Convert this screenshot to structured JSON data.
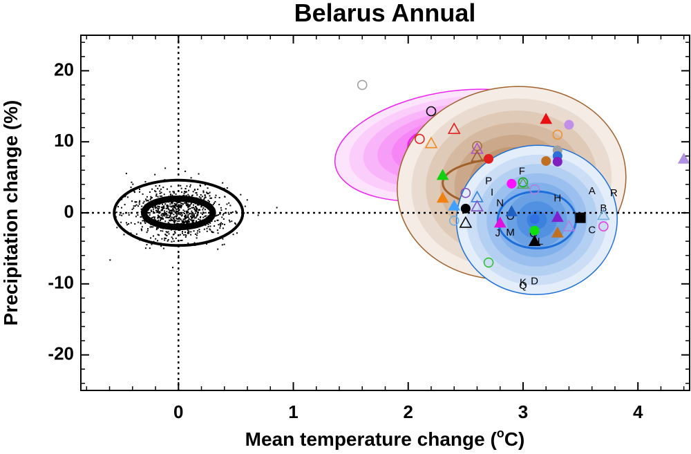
{
  "chart_data": {
    "type": "scatter",
    "title": "Belarus Annual",
    "xlabel": "Mean temperature change (",
    "xlabel_sup": "o",
    "xlabel_end": "C)",
    "ylabel": "Precipitation change (%)",
    "xlim": [
      -0.85,
      4.45
    ],
    "ylim": [
      -25,
      25
    ],
    "xticks": [
      0,
      1,
      2,
      3,
      4
    ],
    "yticks": [
      20,
      10,
      0,
      -10,
      -20
    ],
    "ytick_labels": [
      "20",
      "10",
      "0",
      "-10",
      "-20"
    ],
    "reference_lines": {
      "x": 0,
      "y": 0,
      "style": "dotted"
    },
    "natural_variability": {
      "center": [
        0,
        0
      ],
      "inner_ellipse": {
        "rx": 0.3,
        "ry": 2.0
      },
      "outer_ellipse": {
        "rx": 0.56,
        "ry": 4.6
      },
      "cloud_color": "#000000"
    },
    "model_distributions": [
      {
        "color": "#ee22ee",
        "center": [
          2.35,
          9.5
        ],
        "outer": {
          "rx": 1.0,
          "ry": 7.5,
          "rot": -10
        },
        "inner": {
          "rx": 0.35,
          "ry": 2.6
        }
      },
      {
        "color": "#a0602a",
        "center": [
          2.9,
          4.2
        ],
        "outer": {
          "rx": 1.0,
          "ry": 13.5,
          "rot": -10
        },
        "inner": {
          "rx": 0.6,
          "ry": 3.5
        }
      },
      {
        "color": "#1c6fd8",
        "center": [
          3.12,
          -1.0
        ],
        "outer": {
          "rx": 0.7,
          "ry": 10.5,
          "rot": -5
        },
        "inner": {
          "rx": 0.34,
          "ry": 4.0
        }
      }
    ],
    "letters": [
      {
        "text": "F",
        "x": 2.99,
        "y": 5.8
      },
      {
        "text": "P",
        "x": 2.7,
        "y": 4.4
      },
      {
        "text": "I",
        "x": 2.73,
        "y": 2.8
      },
      {
        "text": "N",
        "x": 2.8,
        "y": 1.3
      },
      {
        "text": "H",
        "x": 3.3,
        "y": 2.0
      },
      {
        "text": "A",
        "x": 3.6,
        "y": 3.0
      },
      {
        "text": "R",
        "x": 3.79,
        "y": 2.7
      },
      {
        "text": "B",
        "x": 3.7,
        "y": 0.6
      },
      {
        "text": "O",
        "x": 2.89,
        "y": -0.6
      },
      {
        "text": "J",
        "x": 2.78,
        "y": -2.9
      },
      {
        "text": "M",
        "x": 2.89,
        "y": -2.8
      },
      {
        "text": "C",
        "x": 3.6,
        "y": -2.5
      },
      {
        "text": "D",
        "x": 3.1,
        "y": -9.7
      },
      {
        "text": "Q",
        "x": 3.0,
        "y": -10.3
      },
      {
        "text": "K",
        "x": 3.0,
        "y": -9.9
      },
      {
        "text": "L",
        "x": 3.15,
        "y": -4.1
      },
      {
        "text": "G",
        "x": 3.09,
        "y": -3.0
      },
      {
        "text": "E",
        "x": 3.3,
        "y": 7.8
      }
    ],
    "points": [
      {
        "x": 1.6,
        "y": 18.0,
        "shape": "circle",
        "fill": false,
        "color": "#a0a0a0"
      },
      {
        "x": 2.2,
        "y": 14.3,
        "shape": "circle",
        "fill": false,
        "color": "#000000"
      },
      {
        "x": 2.1,
        "y": 10.4,
        "shape": "circle",
        "fill": false,
        "color": "#e02020"
      },
      {
        "x": 2.2,
        "y": 9.8,
        "shape": "triangle",
        "fill": false,
        "color": "#f08a20"
      },
      {
        "x": 2.4,
        "y": 11.8,
        "shape": "triangle",
        "fill": false,
        "color": "#e02020"
      },
      {
        "x": 2.6,
        "y": 9.4,
        "shape": "circle",
        "fill": false,
        "color": "#a07040"
      },
      {
        "x": 2.6,
        "y": 9.0,
        "shape": "triangle",
        "fill": false,
        "color": "#b050d0"
      },
      {
        "x": 2.6,
        "y": 7.9,
        "shape": "triangle",
        "fill": false,
        "color": "#a0602a"
      },
      {
        "x": 2.7,
        "y": 7.6,
        "shape": "circle",
        "fill": true,
        "color": "#e02020"
      },
      {
        "x": 3.2,
        "y": 13.2,
        "shape": "triangle",
        "fill": true,
        "color": "#e81010"
      },
      {
        "x": 3.4,
        "y": 12.4,
        "shape": "circle",
        "fill": true,
        "color": "#c090e8"
      },
      {
        "x": 3.3,
        "y": 11.0,
        "shape": "circle",
        "fill": false,
        "color": "#f09030"
      },
      {
        "x": 3.3,
        "y": 8.8,
        "shape": "circle",
        "fill": true,
        "color": "#a0a0a0"
      },
      {
        "x": 3.3,
        "y": 8.0,
        "shape": "circle",
        "fill": true,
        "color": "#2a70d8"
      },
      {
        "x": 3.2,
        "y": 7.3,
        "shape": "circle",
        "fill": true,
        "color": "#c07020"
      },
      {
        "x": 3.3,
        "y": 7.2,
        "shape": "circle",
        "fill": true,
        "color": "#8020c0"
      },
      {
        "x": 4.4,
        "y": 7.6,
        "shape": "triangle",
        "fill": true,
        "color": "#b090e0"
      },
      {
        "x": 2.3,
        "y": 5.3,
        "shape": "triangle",
        "fill": true,
        "color": "#10d010"
      },
      {
        "x": 2.3,
        "y": 2.1,
        "shape": "triangle",
        "fill": true,
        "color": "#f08010"
      },
      {
        "x": 2.5,
        "y": 2.8,
        "shape": "circle",
        "fill": false,
        "color": "#8050c0"
      },
      {
        "x": 2.6,
        "y": 2.2,
        "shape": "triangle",
        "fill": false,
        "color": "#3080e0"
      },
      {
        "x": 2.6,
        "y": 0.9,
        "shape": "triangle",
        "fill": false,
        "color": "#8050c0"
      },
      {
        "x": 2.4,
        "y": 1.0,
        "shape": "triangle",
        "fill": true,
        "color": "#40a0ff"
      },
      {
        "x": 2.5,
        "y": 0.6,
        "shape": "circle",
        "fill": true,
        "color": "#000000"
      },
      {
        "x": 2.4,
        "y": -1.1,
        "shape": "circle",
        "fill": false,
        "color": "#70b0e0"
      },
      {
        "x": 2.5,
        "y": -1.4,
        "shape": "triangle",
        "fill": false,
        "color": "#000000"
      },
      {
        "x": 2.9,
        "y": 4.1,
        "shape": "circle",
        "fill": true,
        "color": "#ff10ff"
      },
      {
        "x": 3.0,
        "y": 4.3,
        "shape": "circle",
        "fill": false,
        "color": "#10b010"
      },
      {
        "x": 3.0,
        "y": 4.1,
        "shape": "triangle",
        "fill": false,
        "color": "#60a060"
      },
      {
        "x": 3.1,
        "y": 3.3,
        "shape": "circle",
        "fill": false,
        "color": "#b080e0"
      },
      {
        "x": 2.9,
        "y": 0.2,
        "shape": "triangle",
        "fill": true,
        "color": "#2060c0"
      },
      {
        "x": 2.8,
        "y": -1.4,
        "shape": "triangle",
        "fill": true,
        "color": "#e010e0"
      },
      {
        "x": 3.3,
        "y": -0.6,
        "shape": "triangle",
        "fill": true,
        "color": "#8020d0"
      },
      {
        "x": 3.5,
        "y": -0.7,
        "shape": "square",
        "fill": true,
        "color": "#000000"
      },
      {
        "x": 3.4,
        "y": -1.9,
        "shape": "triangle",
        "fill": false,
        "color": "#b080e0"
      },
      {
        "x": 3.7,
        "y": -0.3,
        "shape": "triangle",
        "fill": false,
        "color": "#70b0e0"
      },
      {
        "x": 3.7,
        "y": -1.9,
        "shape": "circle",
        "fill": false,
        "color": "#e040e0"
      },
      {
        "x": 3.3,
        "y": -2.8,
        "shape": "triangle",
        "fill": true,
        "color": "#c07020"
      },
      {
        "x": 3.1,
        "y": -2.5,
        "shape": "circle",
        "fill": true,
        "color": "#10e010"
      },
      {
        "x": 3.1,
        "y": -4.0,
        "shape": "triangle",
        "fill": true,
        "color": "#000000"
      },
      {
        "x": 3.1,
        "y": -0.9,
        "shape": "circle",
        "fill": true,
        "color": "#3070e0"
      },
      {
        "x": 2.7,
        "y": -7.0,
        "shape": "circle",
        "fill": false,
        "color": "#30c030"
      }
    ]
  }
}
